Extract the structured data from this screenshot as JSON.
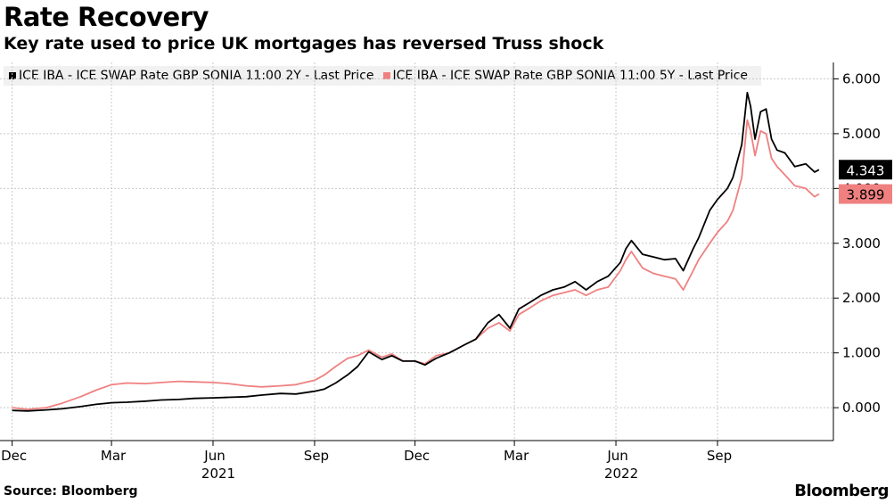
{
  "header": {
    "title": "Rate Recovery",
    "subtitle": "Key rate used to price UK mortgages has reversed Truss shock"
  },
  "footer": {
    "source": "Source: Bloomberg",
    "brand": "Bloomberg"
  },
  "chart_data": {
    "type": "line",
    "title": "Rate Recovery",
    "subtitle": "Key rate used to price UK mortgages has reversed Truss shock",
    "ylim": [
      -0.6,
      6.3
    ],
    "y_ticks": [
      0,
      1,
      2,
      3,
      4,
      5,
      6
    ],
    "y_tick_labels": [
      "0.000",
      "1.000",
      "2.000",
      "3.000",
      "4.000",
      "5.000",
      "6.000"
    ],
    "x_tick_labels": [
      "Dec",
      "Mar",
      "Jun",
      "Sep",
      "Dec",
      "Mar",
      "Jun",
      "Sep"
    ],
    "x_year_labels": [
      "2021",
      "2022"
    ],
    "grid": true,
    "legend_position": "top",
    "series": [
      {
        "name": "ICE IBA - ICE SWAP Rate GBP SONIA 11:00 2Y - Last Price",
        "color": "#000000",
        "last_value_label": "4.343",
        "points": [
          [
            "2020-12-01",
            -0.05
          ],
          [
            "2020-12-15",
            -0.06
          ],
          [
            "2021-01-01",
            -0.04
          ],
          [
            "2021-01-15",
            -0.02
          ],
          [
            "2021-02-01",
            0.02
          ],
          [
            "2021-02-15",
            0.06
          ],
          [
            "2021-03-01",
            0.09
          ],
          [
            "2021-03-15",
            0.1
          ],
          [
            "2021-04-01",
            0.12
          ],
          [
            "2021-04-15",
            0.14
          ],
          [
            "2021-05-01",
            0.15
          ],
          [
            "2021-05-15",
            0.17
          ],
          [
            "2021-06-01",
            0.18
          ],
          [
            "2021-06-15",
            0.19
          ],
          [
            "2021-07-01",
            0.2
          ],
          [
            "2021-07-15",
            0.23
          ],
          [
            "2021-08-01",
            0.26
          ],
          [
            "2021-08-15",
            0.25
          ],
          [
            "2021-09-01",
            0.3
          ],
          [
            "2021-09-10",
            0.34
          ],
          [
            "2021-09-20",
            0.45
          ],
          [
            "2021-10-01",
            0.6
          ],
          [
            "2021-10-10",
            0.75
          ],
          [
            "2021-10-20",
            1.02
          ],
          [
            "2021-11-01",
            0.88
          ],
          [
            "2021-11-10",
            0.95
          ],
          [
            "2021-11-20",
            0.85
          ],
          [
            "2021-12-01",
            0.85
          ],
          [
            "2021-12-10",
            0.78
          ],
          [
            "2021-12-20",
            0.9
          ],
          [
            "2022-01-01",
            1.0
          ],
          [
            "2022-01-15",
            1.15
          ],
          [
            "2022-01-25",
            1.25
          ],
          [
            "2022-02-05",
            1.55
          ],
          [
            "2022-02-15",
            1.7
          ],
          [
            "2022-02-25",
            1.45
          ],
          [
            "2022-03-05",
            1.8
          ],
          [
            "2022-03-15",
            1.92
          ],
          [
            "2022-03-25",
            2.05
          ],
          [
            "2022-04-05",
            2.15
          ],
          [
            "2022-04-15",
            2.2
          ],
          [
            "2022-04-25",
            2.3
          ],
          [
            "2022-05-05",
            2.15
          ],
          [
            "2022-05-15",
            2.3
          ],
          [
            "2022-05-25",
            2.4
          ],
          [
            "2022-06-05",
            2.65
          ],
          [
            "2022-06-10",
            2.9
          ],
          [
            "2022-06-15",
            3.05
          ],
          [
            "2022-06-25",
            2.8
          ],
          [
            "2022-07-05",
            2.75
          ],
          [
            "2022-07-15",
            2.7
          ],
          [
            "2022-07-25",
            2.72
          ],
          [
            "2022-08-01",
            2.5
          ],
          [
            "2022-08-10",
            2.9
          ],
          [
            "2022-08-15",
            3.1
          ],
          [
            "2022-08-25",
            3.6
          ],
          [
            "2022-09-01",
            3.8
          ],
          [
            "2022-09-10",
            4.0
          ],
          [
            "2022-09-15",
            4.2
          ],
          [
            "2022-09-23",
            4.8
          ],
          [
            "2022-09-28",
            5.75
          ],
          [
            "2022-10-01",
            5.5
          ],
          [
            "2022-10-05",
            4.9
          ],
          [
            "2022-10-10",
            5.4
          ],
          [
            "2022-10-15",
            5.45
          ],
          [
            "2022-10-20",
            4.9
          ],
          [
            "2022-10-25",
            4.7
          ],
          [
            "2022-11-01",
            4.65
          ],
          [
            "2022-11-10",
            4.4
          ],
          [
            "2022-11-20",
            4.45
          ],
          [
            "2022-11-28",
            4.3
          ],
          [
            "2022-12-02",
            4.343
          ]
        ]
      },
      {
        "name": "ICE IBA - ICE SWAP Rate GBP SONIA 11:00 5Y - Last Price",
        "color": "#f08080",
        "last_value_label": "3.899",
        "points": [
          [
            "2020-12-01",
            0.0
          ],
          [
            "2020-12-15",
            -0.03
          ],
          [
            "2021-01-01",
            0.0
          ],
          [
            "2021-01-15",
            0.08
          ],
          [
            "2021-02-01",
            0.2
          ],
          [
            "2021-02-15",
            0.32
          ],
          [
            "2021-03-01",
            0.42
          ],
          [
            "2021-03-15",
            0.45
          ],
          [
            "2021-04-01",
            0.44
          ],
          [
            "2021-04-15",
            0.46
          ],
          [
            "2021-05-01",
            0.48
          ],
          [
            "2021-05-15",
            0.47
          ],
          [
            "2021-06-01",
            0.46
          ],
          [
            "2021-06-15",
            0.44
          ],
          [
            "2021-07-01",
            0.4
          ],
          [
            "2021-07-15",
            0.38
          ],
          [
            "2021-08-01",
            0.4
          ],
          [
            "2021-08-15",
            0.42
          ],
          [
            "2021-09-01",
            0.5
          ],
          [
            "2021-09-10",
            0.6
          ],
          [
            "2021-09-20",
            0.75
          ],
          [
            "2021-10-01",
            0.9
          ],
          [
            "2021-10-10",
            0.95
          ],
          [
            "2021-10-20",
            1.05
          ],
          [
            "2021-11-01",
            0.92
          ],
          [
            "2021-11-10",
            0.98
          ],
          [
            "2021-11-20",
            0.85
          ],
          [
            "2021-12-01",
            0.85
          ],
          [
            "2021-12-10",
            0.8
          ],
          [
            "2021-12-20",
            0.95
          ],
          [
            "2022-01-01",
            1.0
          ],
          [
            "2022-01-15",
            1.15
          ],
          [
            "2022-01-25",
            1.25
          ],
          [
            "2022-02-05",
            1.45
          ],
          [
            "2022-02-15",
            1.55
          ],
          [
            "2022-02-25",
            1.4
          ],
          [
            "2022-03-05",
            1.7
          ],
          [
            "2022-03-15",
            1.82
          ],
          [
            "2022-03-25",
            1.95
          ],
          [
            "2022-04-05",
            2.05
          ],
          [
            "2022-04-15",
            2.1
          ],
          [
            "2022-04-25",
            2.15
          ],
          [
            "2022-05-05",
            2.05
          ],
          [
            "2022-05-15",
            2.15
          ],
          [
            "2022-05-25",
            2.2
          ],
          [
            "2022-06-05",
            2.5
          ],
          [
            "2022-06-10",
            2.7
          ],
          [
            "2022-06-15",
            2.85
          ],
          [
            "2022-06-25",
            2.55
          ],
          [
            "2022-07-05",
            2.45
          ],
          [
            "2022-07-15",
            2.4
          ],
          [
            "2022-07-25",
            2.35
          ],
          [
            "2022-08-01",
            2.15
          ],
          [
            "2022-08-10",
            2.5
          ],
          [
            "2022-08-15",
            2.7
          ],
          [
            "2022-08-25",
            3.0
          ],
          [
            "2022-09-01",
            3.2
          ],
          [
            "2022-09-10",
            3.4
          ],
          [
            "2022-09-15",
            3.6
          ],
          [
            "2022-09-23",
            4.2
          ],
          [
            "2022-09-28",
            5.25
          ],
          [
            "2022-10-01",
            5.05
          ],
          [
            "2022-10-05",
            4.6
          ],
          [
            "2022-10-10",
            5.05
          ],
          [
            "2022-10-15",
            5.0
          ],
          [
            "2022-10-20",
            4.55
          ],
          [
            "2022-10-25",
            4.4
          ],
          [
            "2022-11-01",
            4.25
          ],
          [
            "2022-11-10",
            4.05
          ],
          [
            "2022-11-20",
            4.0
          ],
          [
            "2022-11-28",
            3.85
          ],
          [
            "2022-12-02",
            3.899
          ]
        ]
      }
    ]
  }
}
